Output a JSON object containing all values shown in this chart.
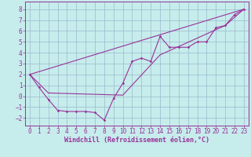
{
  "xlabel": "Windchill (Refroidissement éolien,°C)",
  "xlim": [
    -0.5,
    23.5
  ],
  "ylim": [
    -2.7,
    8.7
  ],
  "yticks": [
    -2,
    -1,
    0,
    1,
    2,
    3,
    4,
    5,
    6,
    7,
    8
  ],
  "xticks": [
    0,
    1,
    2,
    3,
    4,
    5,
    6,
    7,
    8,
    9,
    10,
    11,
    12,
    13,
    14,
    15,
    16,
    17,
    18,
    19,
    20,
    21,
    22,
    23
  ],
  "bg_color": "#c6ecec",
  "grid_color": "#99bbcc",
  "line_color": "#993399",
  "line1_x": [
    0,
    1,
    2,
    3,
    4,
    5,
    6,
    7,
    8,
    9,
    10,
    11,
    12,
    13,
    14,
    15,
    16,
    17,
    18,
    19,
    20,
    21,
    22,
    23
  ],
  "line1_y": [
    2.0,
    0.8,
    -0.3,
    -1.3,
    -1.4,
    -1.4,
    -1.4,
    -1.5,
    -2.2,
    -0.2,
    1.2,
    3.2,
    3.5,
    3.2,
    5.5,
    4.5,
    4.5,
    4.5,
    5.0,
    5.0,
    6.3,
    6.5,
    7.5,
    8.0
  ],
  "line2_x": [
    0,
    2,
    10,
    14,
    21,
    23
  ],
  "line2_y": [
    2.0,
    0.3,
    0.1,
    3.8,
    6.5,
    8.0
  ],
  "line3_x": [
    0,
    23
  ],
  "line3_y": [
    2.0,
    8.0
  ],
  "tick_fontsize": 5.5,
  "xlabel_fontsize": 6.0
}
